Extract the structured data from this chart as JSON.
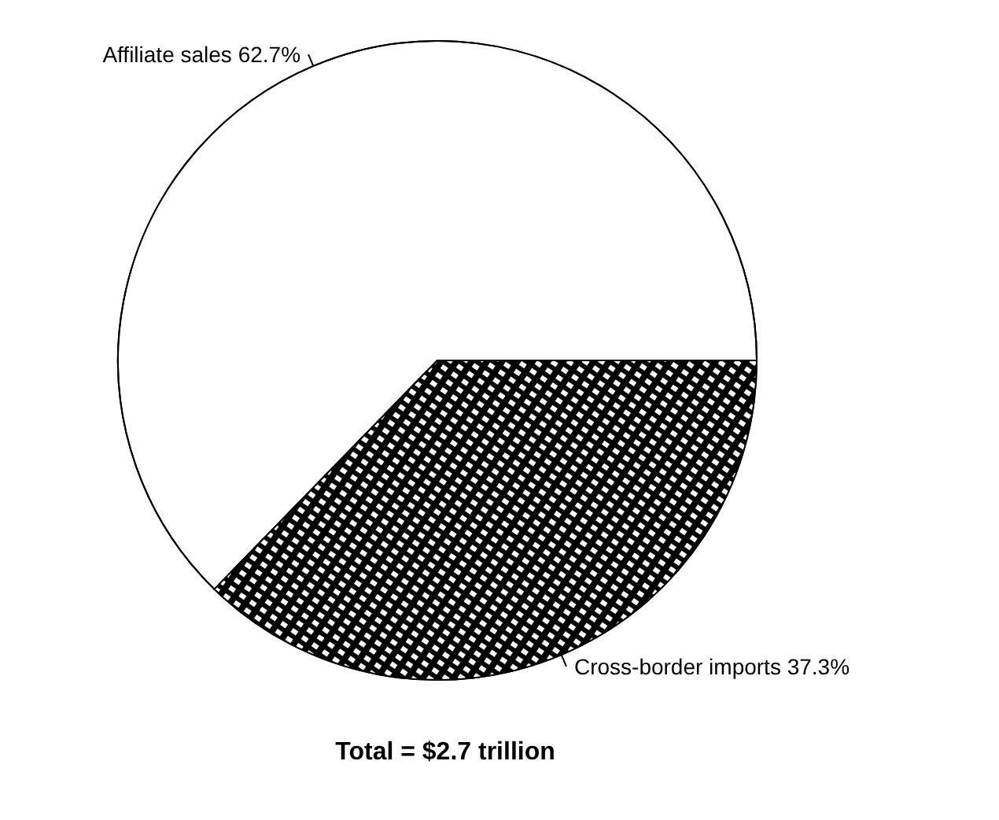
{
  "chart_data": {
    "type": "pie",
    "title": "Total = $2.7 trillion",
    "categories": [
      "Affiliate sales",
      "Cross-border imports"
    ],
    "values": [
      62.7,
      37.3
    ],
    "colors": [
      "#ffffff",
      "#000000"
    ],
    "value_labels": [
      "62.7%",
      "37.3%"
    ],
    "legend": false
  }
}
